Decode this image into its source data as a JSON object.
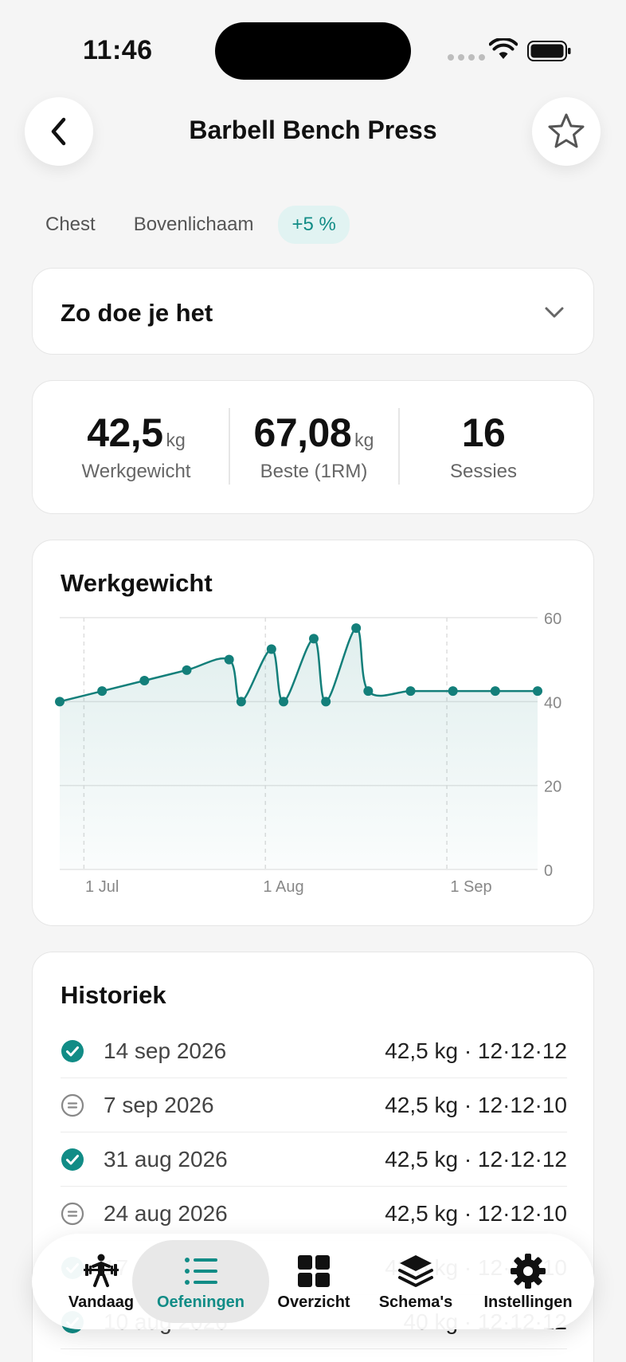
{
  "status_bar": {
    "time": "11:46"
  },
  "header": {
    "title": "Barbell Bench Press"
  },
  "tags": [
    {
      "label": "Chest"
    },
    {
      "label": "Bovenlichaam"
    },
    {
      "label": "+5 %"
    }
  ],
  "howto": {
    "title": "Zo doe je het"
  },
  "stats": {
    "working_weight": {
      "value": "42,5",
      "unit": "kg",
      "label": "Werkgewicht"
    },
    "best": {
      "value": "67,08",
      "unit": "kg",
      "label": "Beste (1RM)"
    },
    "sessions": {
      "value": "16",
      "label": "Sessies"
    }
  },
  "chart": {
    "title": "Werkgewicht"
  },
  "chart_data": {
    "type": "area",
    "title": "Werkgewicht",
    "xlabel": "",
    "ylabel": "",
    "ylim": [
      0,
      60
    ],
    "yticks": [
      "60",
      "40",
      "20",
      "0"
    ],
    "xticks": [
      "1 Jul",
      "1 Aug",
      "1 Sep"
    ],
    "grid": true,
    "series": [
      {
        "values": [
          {
            "x": "2026-06-24",
            "y": 40
          },
          {
            "x": "2026-07-01",
            "y": 42.5
          },
          {
            "x": "2026-07-08",
            "y": 45
          },
          {
            "x": "2026-07-15",
            "y": 47.5
          },
          {
            "x": "2026-07-22",
            "y": 50
          },
          {
            "x": "2026-07-24",
            "y": 40
          },
          {
            "x": "2026-07-29",
            "y": 52.5
          },
          {
            "x": "2026-07-31",
            "y": 40
          },
          {
            "x": "2026-08-05",
            "y": 55
          },
          {
            "x": "2026-08-07",
            "y": 40
          },
          {
            "x": "2026-08-12",
            "y": 57.5
          },
          {
            "x": "2026-08-14",
            "y": 42.5
          },
          {
            "x": "2026-08-21",
            "y": 42.5
          },
          {
            "x": "2026-08-28",
            "y": 42.5
          },
          {
            "x": "2026-09-04",
            "y": 42.5
          },
          {
            "x": "2026-09-11",
            "y": 42.5
          }
        ]
      }
    ],
    "color": "#137f7a"
  },
  "history": {
    "title": "Historiek",
    "items": [
      {
        "date": "14 sep 2026",
        "value": "42,5 kg · 12·12·12",
        "status": "check-circle-icon"
      },
      {
        "date": "7 sep 2026",
        "value": "42,5 kg · 12·12·10",
        "status": "equal-circle-icon"
      },
      {
        "date": "31 aug 2026",
        "value": "42,5 kg · 12·12·12",
        "status": "check-circle-icon"
      },
      {
        "date": "24 aug 2026",
        "value": "42,5 kg · 12·12·10",
        "status": "equal-circle-icon"
      },
      {
        "date": "17 aug 2026",
        "value": "42,5 kg · 12·12·10",
        "status": "check-circle-icon"
      },
      {
        "date": "10 aug 2026",
        "value": "40 kg · 12·12·12",
        "status": "check-circle-icon"
      }
    ]
  },
  "tabs": [
    {
      "label": "Vandaag",
      "icon": "barbell-icon"
    },
    {
      "label": "Oefeningen",
      "icon": "list-icon",
      "active": true
    },
    {
      "label": "Overzicht",
      "icon": "grid-icon"
    },
    {
      "label": "Schema's",
      "icon": "layers-icon"
    },
    {
      "label": "Instellingen",
      "icon": "gear-icon"
    }
  ],
  "colors": {
    "accent": "#118c86",
    "background": "#f5f5f5"
  }
}
